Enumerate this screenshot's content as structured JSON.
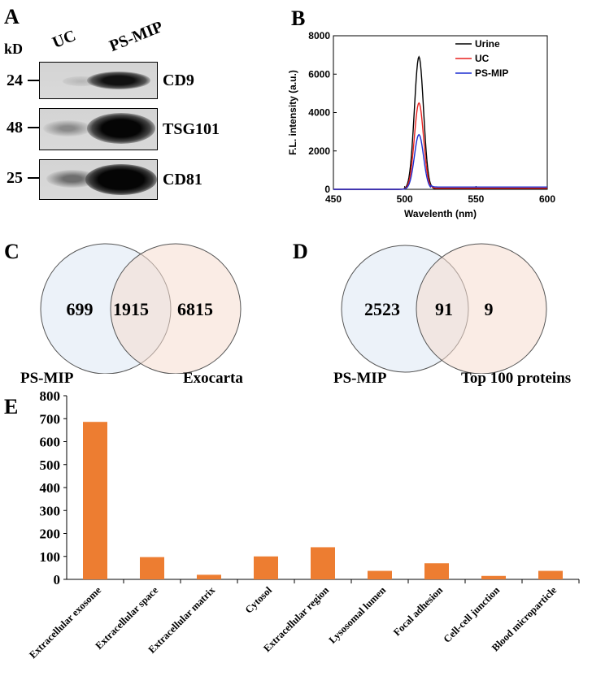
{
  "panel_a": {
    "letter": "A",
    "kd_label": "kD",
    "lane_labels": [
      "UC",
      "PS-MIP"
    ],
    "blots": [
      {
        "marker": "24",
        "protein": "CD9"
      },
      {
        "marker": "48",
        "protein": "TSG101"
      },
      {
        "marker": "25",
        "protein": "CD81"
      }
    ]
  },
  "panel_b": {
    "letter": "B",
    "ylabel": "F.L. intensity (a.u.)",
    "xlabel": "Wavelenth (nm)",
    "legend": [
      "Urine",
      "UC",
      "PS-MIP"
    ],
    "colors": {
      "Urine": "#000000",
      "UC": "#e8201e",
      "PS-MIP": "#1d2fd0"
    }
  },
  "panel_c": {
    "letter": "C",
    "left_only": "699",
    "overlap": "1915",
    "right_only": "6815",
    "left_label": "PS-MIP",
    "right_label": "Exocarta"
  },
  "panel_d": {
    "letter": "D",
    "left_only": "2523",
    "overlap": "91",
    "right_only": "9",
    "left_label": "PS-MIP",
    "right_label": "Top 100 proteins"
  },
  "panel_e": {
    "letter": "E",
    "bar_color": "#ed7d31"
  },
  "chart_data": [
    {
      "type": "line",
      "xlabel": "Wavelenth (nm)",
      "ylabel": "F.L. intensity (a.u.)",
      "xlim": [
        450,
        600
      ],
      "ylim": [
        0,
        8000
      ],
      "xticks": [
        450,
        500,
        550,
        600
      ],
      "yticks": [
        0,
        2000,
        4000,
        6000,
        8000
      ],
      "legend_position": "top-right",
      "series": [
        {
          "name": "Urine",
          "peak_x": 510,
          "peak_y": 6900,
          "baseline": 20
        },
        {
          "name": "UC",
          "peak_x": 510,
          "peak_y": 4500,
          "baseline": 60
        },
        {
          "name": "PS-MIP",
          "peak_x": 510,
          "peak_y": 2850,
          "baseline": 120
        }
      ]
    },
    {
      "type": "bar",
      "categories": [
        "Extracellular exosome",
        "Extracellular space",
        "Extracellular matrix",
        "Cytosol",
        "Extracellular region",
        "Lysosomal lumen",
        "Focal adhesion",
        "Cell-cell junction",
        "Blood microparticle"
      ],
      "values": [
        686,
        97,
        20,
        100,
        140,
        37,
        70,
        15,
        37
      ],
      "ylim": [
        0,
        800
      ],
      "yticks": [
        0,
        100,
        200,
        300,
        400,
        500,
        600,
        700,
        800
      ]
    }
  ]
}
